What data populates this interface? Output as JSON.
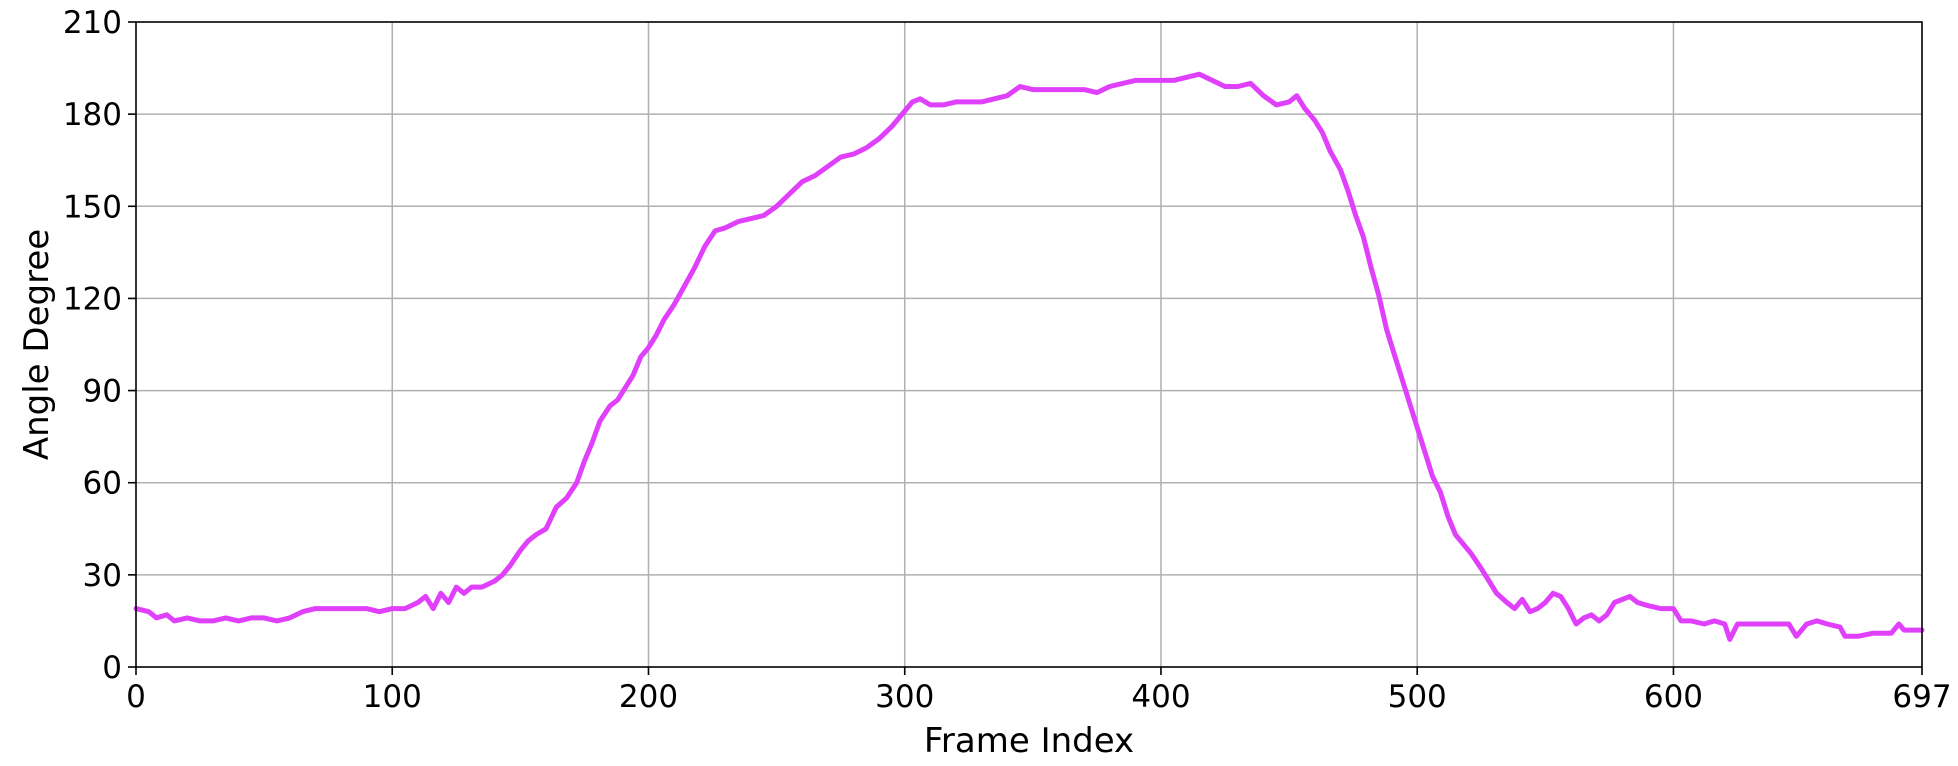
{
  "chart_data": {
    "type": "line",
    "title": "",
    "xlabel": "Frame Index",
    "ylabel": "Angle Degree",
    "xlim": [
      0,
      697
    ],
    "ylim": [
      0,
      210
    ],
    "x_ticks": [
      0,
      100,
      200,
      300,
      400,
      500,
      600,
      697
    ],
    "y_ticks": [
      0,
      30,
      60,
      90,
      120,
      150,
      180,
      210
    ],
    "grid": true,
    "legend": "none",
    "series": [
      {
        "color": "#e040fb",
        "points": [
          [
            0,
            19
          ],
          [
            5,
            18
          ],
          [
            8,
            16
          ],
          [
            12,
            17
          ],
          [
            15,
            15
          ],
          [
            20,
            16
          ],
          [
            25,
            15
          ],
          [
            30,
            15
          ],
          [
            35,
            16
          ],
          [
            40,
            15
          ],
          [
            45,
            16
          ],
          [
            50,
            16
          ],
          [
            55,
            15
          ],
          [
            60,
            16
          ],
          [
            65,
            18
          ],
          [
            70,
            19
          ],
          [
            80,
            19
          ],
          [
            90,
            19
          ],
          [
            95,
            18
          ],
          [
            100,
            19
          ],
          [
            105,
            19
          ],
          [
            110,
            21
          ],
          [
            113,
            23
          ],
          [
            116,
            19
          ],
          [
            119,
            24
          ],
          [
            122,
            21
          ],
          [
            125,
            26
          ],
          [
            128,
            24
          ],
          [
            131,
            26
          ],
          [
            135,
            26
          ],
          [
            140,
            28
          ],
          [
            143,
            30
          ],
          [
            146,
            33
          ],
          [
            150,
            38
          ],
          [
            153,
            41
          ],
          [
            156,
            43
          ],
          [
            160,
            45
          ],
          [
            164,
            52
          ],
          [
            168,
            55
          ],
          [
            172,
            60
          ],
          [
            175,
            67
          ],
          [
            178,
            73
          ],
          [
            181,
            80
          ],
          [
            185,
            85
          ],
          [
            188,
            87
          ],
          [
            191,
            91
          ],
          [
            194,
            95
          ],
          [
            197,
            101
          ],
          [
            200,
            104
          ],
          [
            203,
            108
          ],
          [
            206,
            113
          ],
          [
            210,
            118
          ],
          [
            214,
            124
          ],
          [
            218,
            130
          ],
          [
            222,
            137
          ],
          [
            226,
            142
          ],
          [
            230,
            143
          ],
          [
            235,
            145
          ],
          [
            240,
            146
          ],
          [
            245,
            147
          ],
          [
            250,
            150
          ],
          [
            255,
            154
          ],
          [
            260,
            158
          ],
          [
            265,
            160
          ],
          [
            270,
            163
          ],
          [
            275,
            166
          ],
          [
            280,
            167
          ],
          [
            285,
            169
          ],
          [
            290,
            172
          ],
          [
            295,
            176
          ],
          [
            300,
            181
          ],
          [
            303,
            184
          ],
          [
            306,
            185
          ],
          [
            310,
            183
          ],
          [
            315,
            183
          ],
          [
            320,
            184
          ],
          [
            330,
            184
          ],
          [
            340,
            186
          ],
          [
            345,
            189
          ],
          [
            350,
            188
          ],
          [
            360,
            188
          ],
          [
            370,
            188
          ],
          [
            375,
            187
          ],
          [
            380,
            189
          ],
          [
            390,
            191
          ],
          [
            400,
            191
          ],
          [
            405,
            191
          ],
          [
            410,
            192
          ],
          [
            415,
            193
          ],
          [
            420,
            191
          ],
          [
            425,
            189
          ],
          [
            430,
            189
          ],
          [
            435,
            190
          ],
          [
            440,
            186
          ],
          [
            445,
            183
          ],
          [
            450,
            184
          ],
          [
            453,
            186
          ],
          [
            456,
            182
          ],
          [
            460,
            178
          ],
          [
            463,
            174
          ],
          [
            466,
            168
          ],
          [
            470,
            162
          ],
          [
            473,
            155
          ],
          [
            476,
            147
          ],
          [
            479,
            140
          ],
          [
            482,
            130
          ],
          [
            485,
            121
          ],
          [
            488,
            110
          ],
          [
            491,
            102
          ],
          [
            494,
            94
          ],
          [
            497,
            86
          ],
          [
            500,
            78
          ],
          [
            503,
            70
          ],
          [
            506,
            62
          ],
          [
            509,
            57
          ],
          [
            512,
            49
          ],
          [
            515,
            43
          ],
          [
            518,
            40
          ],
          [
            521,
            37
          ],
          [
            525,
            32
          ],
          [
            528,
            28
          ],
          [
            531,
            24
          ],
          [
            535,
            21
          ],
          [
            538,
            19
          ],
          [
            541,
            22
          ],
          [
            544,
            18
          ],
          [
            547,
            19
          ],
          [
            550,
            21
          ],
          [
            553,
            24
          ],
          [
            556,
            23
          ],
          [
            559,
            19
          ],
          [
            562,
            14
          ],
          [
            565,
            16
          ],
          [
            568,
            17
          ],
          [
            571,
            15
          ],
          [
            574,
            17
          ],
          [
            577,
            21
          ],
          [
            580,
            22
          ],
          [
            583,
            23
          ],
          [
            586,
            21
          ],
          [
            590,
            20
          ],
          [
            595,
            19
          ],
          [
            600,
            19
          ],
          [
            603,
            15
          ],
          [
            607,
            15
          ],
          [
            612,
            14
          ],
          [
            616,
            15
          ],
          [
            620,
            14
          ],
          [
            622,
            9
          ],
          [
            625,
            14
          ],
          [
            630,
            14
          ],
          [
            640,
            14
          ],
          [
            645,
            14
          ],
          [
            648,
            10
          ],
          [
            652,
            14
          ],
          [
            656,
            15
          ],
          [
            660,
            14
          ],
          [
            665,
            13
          ],
          [
            667,
            10
          ],
          [
            672,
            10
          ],
          [
            678,
            11
          ],
          [
            685,
            11
          ],
          [
            688,
            14
          ],
          [
            690,
            12
          ],
          [
            697,
            12
          ]
        ]
      }
    ]
  }
}
